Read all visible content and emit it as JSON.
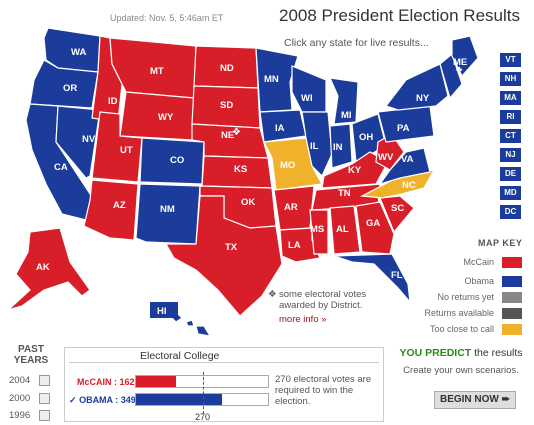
{
  "header": {
    "updated": "Updated: Nov. 5, 5:46am ET",
    "title": "2008 President Election Results",
    "hint": "Click any state for live results..."
  },
  "colors": {
    "mccain": "#d81e28",
    "obama": "#1b3c9a",
    "no_returns": "#888888",
    "returns_available": "#555555",
    "too_close": "#f0b22b"
  },
  "states": {
    "WA": "WA",
    "OR": "OR",
    "CA": "CA",
    "NV": "NV",
    "ID": "ID",
    "MT": "MT",
    "WY": "WY",
    "UT": "UT",
    "AZ": "AZ",
    "CO": "CO",
    "NM": "NM",
    "ND": "ND",
    "SD": "SD",
    "NE": "NE",
    "KS": "KS",
    "OK": "OK",
    "TX": "TX",
    "MN": "MN",
    "IA": "IA",
    "MO": "MO",
    "AR": "AR",
    "LA": "LA",
    "WI": "WI",
    "IL": "IL",
    "MS": "MS",
    "MI": "MI",
    "IN": "IN",
    "KY": "KY",
    "TN": "TN",
    "AL": "AL",
    "OH": "OH",
    "WV": "WV",
    "GA": "GA",
    "FL": "FL",
    "SC": "SC",
    "NC": "NC",
    "VA": "VA",
    "PA": "PA",
    "NY": "NY",
    "ME": "ME",
    "AK": "AK",
    "HI": "HI"
  },
  "ne_boxes": [
    "VT",
    "NH",
    "MA",
    "RI",
    "CT",
    "NJ",
    "DE",
    "MD",
    "DC"
  ],
  "district_note": {
    "glyph": "❖",
    "text": "some electoral votes awarded by District.",
    "more": "more info »"
  },
  "map_key": {
    "title": "MAP KEY",
    "items": [
      {
        "label": "McCain",
        "color": "#d81e28"
      },
      {
        "label": "Obama",
        "color": "#1b3c9a"
      },
      {
        "label": "No returns yet",
        "color": "#888888"
      },
      {
        "label": "Returns available",
        "color": "#555555"
      },
      {
        "label": "Too close to call",
        "color": "#f0b22b"
      }
    ]
  },
  "past_years": {
    "title_1": "PAST",
    "title_2": "YEARS",
    "years": [
      "2004",
      "2000",
      "1996"
    ]
  },
  "electoral_college": {
    "title": "Electoral College",
    "mccain_label": "McCAIN : 162",
    "obama_label": "OBAMA : 349",
    "check": "✓",
    "mccain_votes": 162,
    "obama_votes": 349,
    "needed_note": "270 electoral votes are required to win the election.",
    "needed_label": "270"
  },
  "predict": {
    "title_bold": "YOU PREDICT",
    "title_rest": " the results",
    "subtitle": "Create your own scenarios.",
    "button": "BEGIN NOW",
    "button_arrow": "➨"
  }
}
